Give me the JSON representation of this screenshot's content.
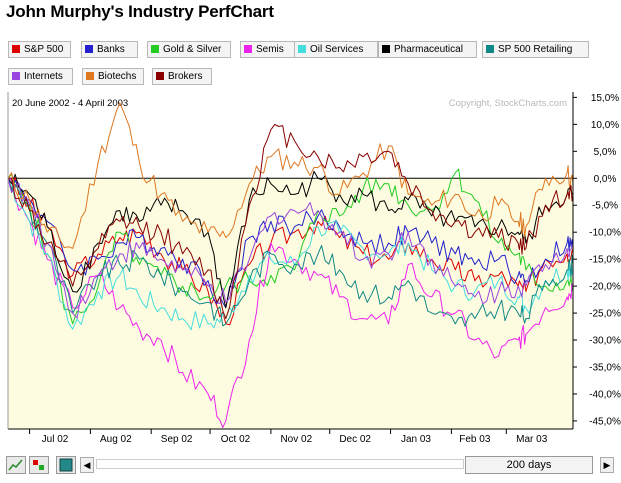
{
  "page": {
    "title": "John Murphy's Industry PerfChart"
  },
  "legend": [
    {
      "label": "S&P 500",
      "color": "#dd0000"
    },
    {
      "label": "Banks",
      "color": "#2222cc"
    },
    {
      "label": "Gold & Silver",
      "color": "#22cc22"
    },
    {
      "label": "Semis",
      "color": "#ee22ee"
    },
    {
      "label": "Oil Services",
      "color": "#44dddd"
    },
    {
      "label": "Pharmaceutical",
      "color": "#000000"
    },
    {
      "label": "SP 500 Retailing",
      "color": "#118888"
    },
    {
      "label": "Internets",
      "color": "#9944dd"
    },
    {
      "label": "Biotechs",
      "color": "#dd7722"
    },
    {
      "label": "Brokers",
      "color": "#880000"
    }
  ],
  "toolbar": {
    "days_label": "200 days",
    "left_arrow": "◀",
    "right_arrow": "▶"
  },
  "chart_data": {
    "type": "line",
    "title": "John Murphy's Industry PerfChart",
    "date_range_label": "20 June 2002 - 4 April 2003",
    "watermark": "Copyright, StockCharts.com",
    "x_tick_labels": [
      "Jul 02",
      "Aug 02",
      "Sep 02",
      "Oct 02",
      "Nov 02",
      "Dec 02",
      "Jan 03",
      "Feb 03",
      "Mar 03"
    ],
    "y_tick_labels": [
      "15,0%",
      "10,0%",
      "5,0%",
      "0,0%",
      "-5,0%",
      "-10,0%",
      "-15,0%",
      "-20,0%",
      "-25,0%",
      "-30,0%",
      "-35,0%",
      "-40,0%",
      "-45,0%"
    ],
    "y_ticks": [
      15,
      10,
      5,
      0,
      -5,
      -10,
      -15,
      -20,
      -25,
      -30,
      -35,
      -40,
      -45
    ],
    "ylim": [
      -46.5,
      16
    ],
    "y_unit": "%",
    "grid": false,
    "x": [
      "2002-06-20",
      "2002-07-01",
      "2002-07-10",
      "2002-07-23",
      "2002-08-05",
      "2002-08-16",
      "2002-08-26",
      "2002-09-06",
      "2002-09-17",
      "2002-09-30",
      "2002-10-09",
      "2002-10-21",
      "2002-11-01",
      "2002-11-13",
      "2002-11-25",
      "2002-12-06",
      "2002-12-18",
      "2002-12-31",
      "2003-01-10",
      "2003-01-22",
      "2003-02-03",
      "2003-02-13",
      "2003-02-25",
      "2003-03-07",
      "2003-03-11",
      "2003-03-21",
      "2003-04-01",
      "2003-04-04"
    ],
    "series": [
      {
        "name": "S&P 500",
        "color": "#dd0000",
        "values": [
          0,
          -5,
          -9,
          -18,
          -14,
          -11,
          -10,
          -14,
          -17,
          -21,
          -27,
          -16,
          -12,
          -10,
          -8,
          -11,
          -14,
          -15,
          -12,
          -15,
          -17,
          -19,
          -18,
          -20,
          -21,
          -15,
          -14,
          -13
        ]
      },
      {
        "name": "Banks",
        "color": "#2222cc",
        "values": [
          0,
          -4,
          -8,
          -17,
          -15,
          -12,
          -11,
          -13,
          -15,
          -19,
          -24,
          -11,
          -8,
          -9,
          -7,
          -9,
          -12,
          -12,
          -10,
          -12,
          -14,
          -16,
          -15,
          -18,
          -19,
          -15,
          -12,
          -13
        ]
      },
      {
        "name": "Gold & Silver",
        "color": "#22cc22",
        "values": [
          0,
          -5,
          -14,
          -27,
          -20,
          -10,
          -16,
          -18,
          -20,
          -22,
          -20,
          -19,
          -18,
          -17,
          -6,
          -7,
          -2,
          -1,
          -5,
          -6,
          1,
          -4,
          -12,
          -14,
          -17,
          -20,
          -19,
          -20
        ]
      },
      {
        "name": "Semis",
        "color": "#ee22ee",
        "values": [
          0,
          -8,
          -15,
          -24,
          -18,
          -24,
          -28,
          -30,
          -36,
          -40,
          -45,
          -30,
          -12,
          -15,
          -18,
          -22,
          -26,
          -27,
          -16,
          -22,
          -25,
          -30,
          -33,
          -30,
          -29,
          -24,
          -22,
          -20
        ]
      },
      {
        "name": "Oil Services",
        "color": "#44dddd",
        "values": [
          0,
          -8,
          -14,
          -28,
          -21,
          -18,
          -22,
          -24,
          -26,
          -27,
          -26,
          -18,
          -15,
          -16,
          -9,
          -10,
          -13,
          -14,
          -12,
          -17,
          -20,
          -21,
          -19,
          -22,
          -24,
          -19,
          -17,
          -16
        ]
      },
      {
        "name": "Pharmaceutical",
        "color": "#000000",
        "values": [
          0,
          -3,
          -9,
          -21,
          -12,
          -6,
          -8,
          -5,
          -6,
          -10,
          -24,
          -4,
          -1,
          -3,
          0,
          -3,
          -3,
          -6,
          -4,
          -7,
          -8,
          -9,
          -9,
          -10,
          -12,
          -5,
          -3,
          -3
        ]
      },
      {
        "name": "SP 500 Retailing",
        "color": "#118888",
        "values": [
          0,
          -6,
          -12,
          -25,
          -18,
          -16,
          -15,
          -18,
          -21,
          -23,
          -27,
          -19,
          -14,
          -16,
          -14,
          -17,
          -21,
          -22,
          -19,
          -25,
          -27,
          -26,
          -24,
          -25,
          -26,
          -19,
          -17,
          -16
        ]
      },
      {
        "name": "Internets",
        "color": "#9944dd",
        "values": [
          0,
          -5,
          -12,
          -25,
          -18,
          -14,
          -13,
          -15,
          -17,
          -20,
          -23,
          -15,
          -7,
          -6,
          -6,
          -10,
          -15,
          -14,
          -10,
          -15,
          -20,
          -22,
          -21,
          -20,
          -20,
          -16,
          -13,
          -12
        ]
      },
      {
        "name": "Biotechs",
        "color": "#dd7722",
        "values": [
          0,
          -4,
          -10,
          -13,
          3,
          14,
          3,
          -3,
          -8,
          -10,
          -11,
          -1,
          4,
          3,
          2,
          -3,
          1,
          6,
          -3,
          -5,
          -3,
          -7,
          -5,
          -8,
          -9,
          0,
          1,
          -1
        ]
      },
      {
        "name": "Brokers",
        "color": "#880000",
        "values": [
          0,
          -6,
          -12,
          -20,
          -13,
          -8,
          -9,
          -10,
          -14,
          -17,
          -26,
          -5,
          9,
          7,
          4,
          2,
          4,
          5,
          -1,
          -6,
          -8,
          -10,
          -11,
          -12,
          -13,
          -5,
          -3,
          -3
        ]
      }
    ]
  }
}
